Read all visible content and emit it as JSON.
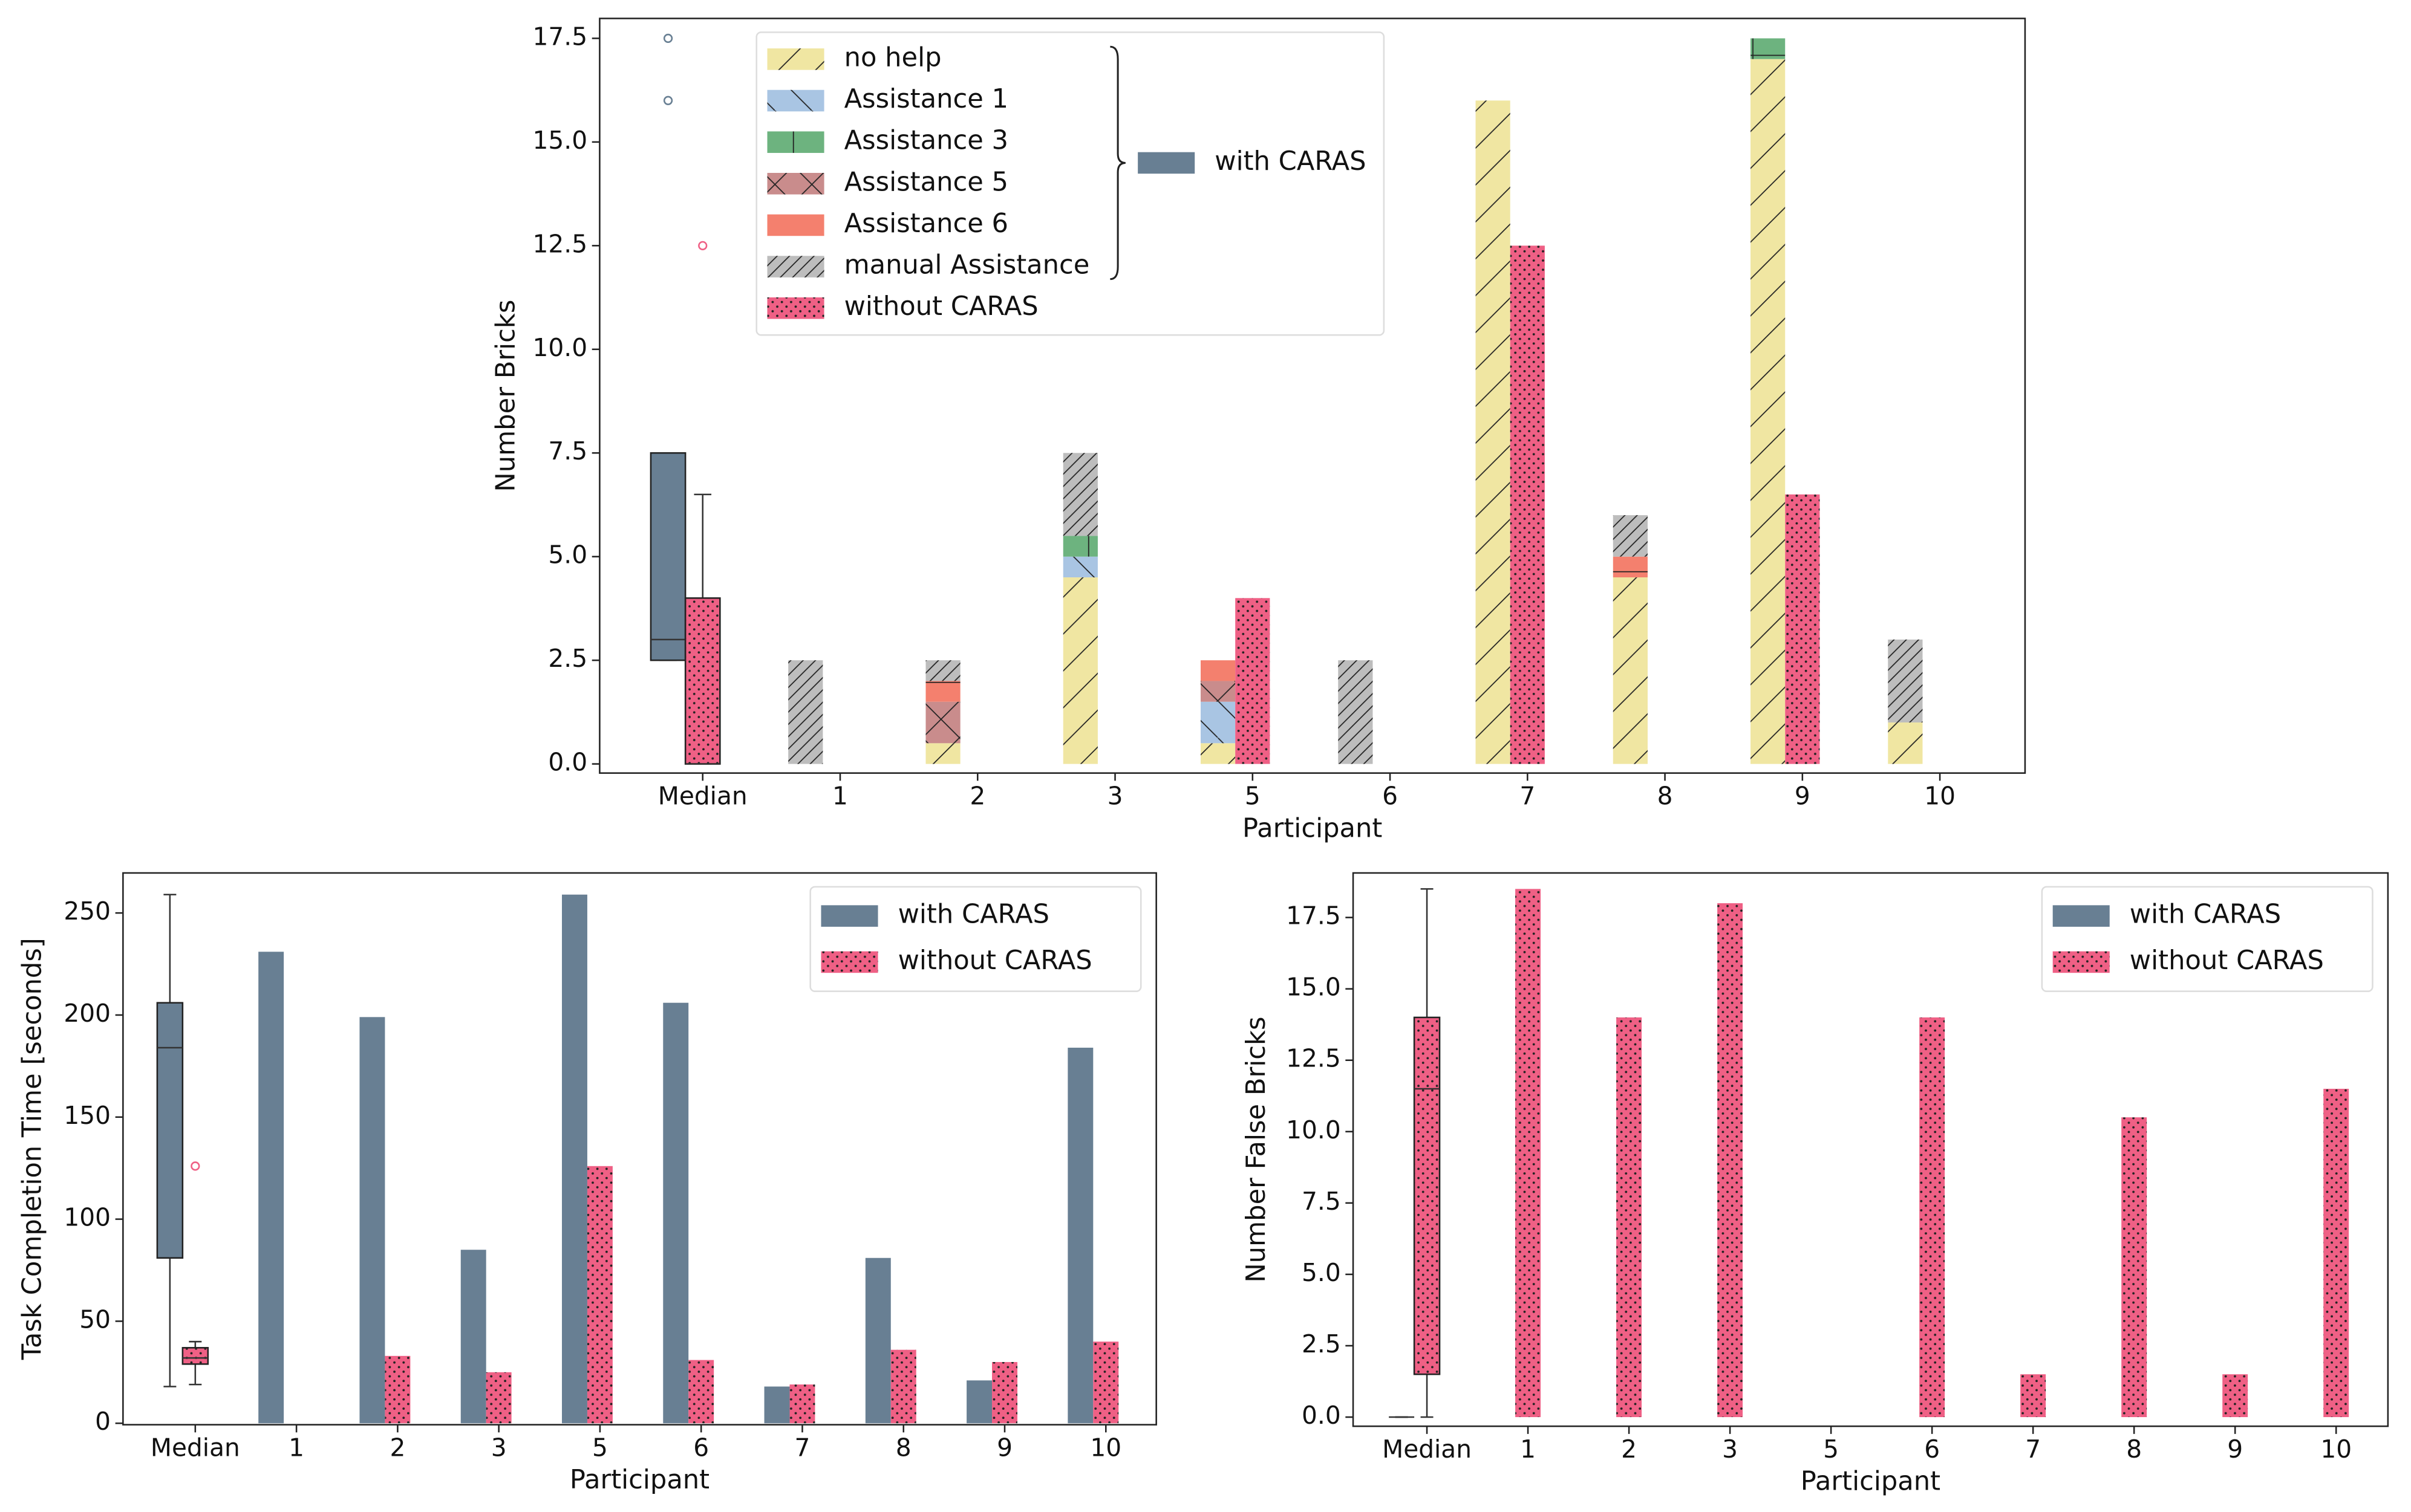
{
  "chart_data": [
    {
      "type": "bar",
      "xlabel": "Participant",
      "ylabel": "Number Bricks",
      "legend": "upper left",
      "categories": [
        "Median",
        "1",
        "2",
        "3",
        "5",
        "6",
        "7",
        "8",
        "9",
        "10"
      ],
      "ylim": [
        -0.22,
        17.98
      ],
      "yticks": [
        {
          "value": 0,
          "label": "0.0"
        },
        2.5,
        {
          "value": 5,
          "label": "5.0"
        },
        7.5,
        {
          "value": 10,
          "label": "10.0"
        },
        12.5,
        {
          "value": 15,
          "label": "15.0"
        },
        17.5
      ],
      "series": [
        {
          "name": "with CARAS",
          "color": "#687f93",
          "box": {
            "whislo": 2.5,
            "q1": 2.5,
            "median": 3,
            "q3": 7.5,
            "whishi": 7.5,
            "fliers": [
              16,
              17.5
            ]
          },
          "stack": [
            {
              "name": "no help",
              "color": "#f0e6a2",
              "hatch": "/",
              "values": [
                null,
                0,
                0.5,
                4.5,
                0.5,
                0,
                16,
                4.5,
                17,
                1
              ]
            },
            {
              "name": "Assistance 1",
              "color": "#a9c5e3",
              "hatch": "\\",
              "values": [
                null,
                0,
                0,
                0.5,
                1,
                0,
                0,
                0,
                0,
                0
              ]
            },
            {
              "name": "Assistance 3",
              "color": "#6db37f",
              "hatch": "+",
              "values": [
                null,
                0,
                0,
                0.5,
                0,
                0,
                0,
                0,
                0.5,
                0
              ]
            },
            {
              "name": "Assistance 5",
              "color": "#c98c8c",
              "hatch": "x",
              "values": [
                null,
                0,
                1,
                0,
                0.5,
                0,
                0,
                0,
                0,
                0
              ]
            },
            {
              "name": "Assistance 6",
              "color": "#f4806e",
              "hatch": "-",
              "values": [
                null,
                0,
                0.5,
                0,
                0.5,
                0,
                0,
                0.5,
                0,
                0
              ]
            },
            {
              "name": "manual Assistance",
              "color": "#bdbdbd",
              "hatch": "////",
              "values": [
                null,
                2.5,
                0.5,
                2,
                0,
                2.5,
                0,
                1,
                0,
                2
              ]
            }
          ]
        },
        {
          "name": "without CARAS",
          "color": "#ef6085",
          "hatch": ".",
          "box": {
            "whislo": 0,
            "q1": 0,
            "median": 0,
            "q3": 4,
            "whishi": 6.5,
            "fliers": [
              12.5
            ]
          },
          "values": [
            null,
            0,
            0,
            0,
            4,
            0,
            12.5,
            0,
            6.5,
            0
          ]
        }
      ]
    },
    {
      "type": "bar",
      "xlabel": "Participant",
      "ylabel": "Task Completion Time [seconds]",
      "legend": "upper right",
      "categories": [
        "Median",
        "1",
        "2",
        "3",
        "5",
        "6",
        "7",
        "8",
        "9",
        "10"
      ],
      "ylim": [
        -0.7,
        269.6
      ],
      "yticks": [
        0,
        50,
        100,
        150,
        200,
        250
      ],
      "series": [
        {
          "name": "with CARAS",
          "color": "#687f93",
          "box": {
            "whislo": 18,
            "q1": 81,
            "median": 184,
            "q3": 206,
            "whishi": 259,
            "fliers": []
          },
          "values": [
            null,
            231,
            199,
            85,
            259,
            206,
            18,
            81,
            21,
            184
          ]
        },
        {
          "name": "without CARAS",
          "color": "#ef6085",
          "hatch": ".",
          "box": {
            "whislo": 19,
            "q1": 29,
            "median": 32,
            "q3": 37,
            "whishi": 40,
            "fliers": [
              126
            ]
          },
          "values": [
            null,
            0,
            33,
            25,
            126,
            31,
            19,
            36,
            30,
            40
          ]
        }
      ]
    },
    {
      "type": "bar",
      "xlabel": "Participant",
      "ylabel": "Number False Bricks",
      "legend": "upper right",
      "categories": [
        "Median",
        "1",
        "2",
        "3",
        "5",
        "6",
        "7",
        "8",
        "9",
        "10"
      ],
      "ylim": [
        -0.32,
        19.06
      ],
      "yticks": [
        {
          "value": 0,
          "label": "0.0"
        },
        2.5,
        {
          "value": 5,
          "label": "5.0"
        },
        7.5,
        {
          "value": 10,
          "label": "10.0"
        },
        12.5,
        {
          "value": 15,
          "label": "15.0"
        },
        17.5
      ],
      "series": [
        {
          "name": "with CARAS",
          "color": "#687f93",
          "box": {
            "whislo": 0,
            "q1": 0,
            "median": 0,
            "q3": 0,
            "whishi": 0,
            "fliers": []
          },
          "values": [
            null,
            0,
            0,
            0,
            0,
            0,
            0,
            0,
            0,
            0
          ]
        },
        {
          "name": "without CARAS",
          "color": "#ef6085",
          "hatch": ".",
          "box": {
            "whislo": 0,
            "q1": 1.5,
            "median": 11.5,
            "q3": 14,
            "whishi": 18.5,
            "fliers": []
          },
          "values": [
            null,
            18.5,
            14,
            18,
            0,
            14,
            1.5,
            10.5,
            1.5,
            11.5
          ]
        }
      ]
    }
  ]
}
